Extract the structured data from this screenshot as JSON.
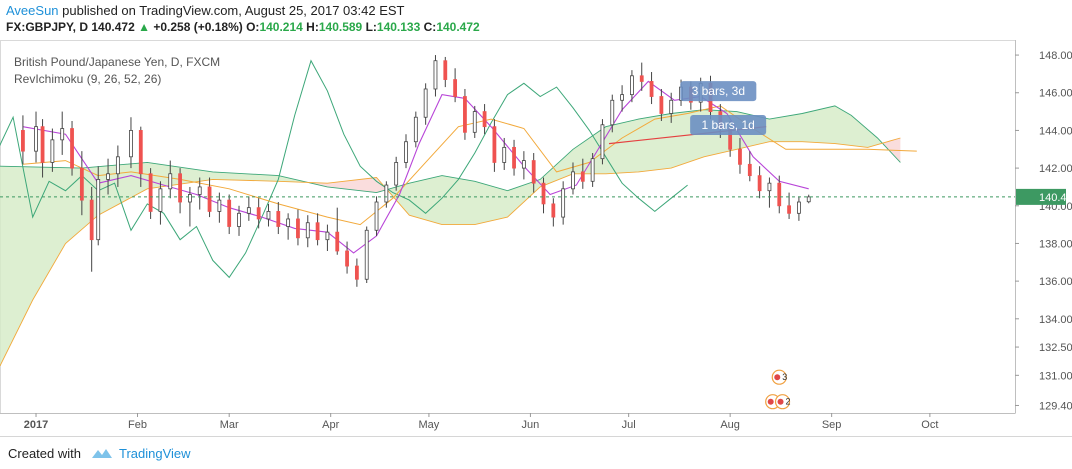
{
  "header": {
    "author": "AveeSun",
    "published": "published on TradingView.com, August 25, 2017 03:42 EST",
    "symbol": "FX:GBPJPY, D",
    "last": "140.472",
    "change": "+0.258 (+0.18%)",
    "open_label": "O:",
    "open": "140.214",
    "high_label": "H:",
    "high": "140.589",
    "low_label": "L:",
    "low": "140.133",
    "close_label": "C:",
    "close": "140.472"
  },
  "chart_title": "British Pound/Japanese Yen, D, FXCM",
  "indicator_label": "RevIchimoku (9, 26, 52, 26)",
  "footer": {
    "created": "Created with",
    "brand": "TradingView"
  },
  "colors": {
    "up": "#26a69a",
    "down": "#ef5350",
    "up_fill": "#ffffff",
    "conversion": "#b845d8",
    "base": "#f2a93b",
    "lagging": "#3da779",
    "cloud_bull": "#d4ebc6",
    "cloud_bear": "#f9d5d5",
    "last_price": "#3d9962",
    "trendline": "#e54040",
    "annotation": "#6b8fc2"
  },
  "annotations": [
    {
      "text": "3 bars, 3d"
    },
    {
      "text": "1 bars, 1d"
    }
  ],
  "chart_data": {
    "type": "candlestick",
    "title": "British Pound/Japanese Yen, D, FXCM",
    "xlabel": "",
    "ylabel": "",
    "ylim": [
      129.0,
      148.8
    ],
    "y_ticks": [
      "148.000",
      "146.000",
      "144.000",
      "142.000",
      "140.000",
      "138.000",
      "136.000",
      "134.000",
      "132.500",
      "131.000",
      "129.400"
    ],
    "y_tick_values": [
      148,
      146,
      144,
      142,
      140,
      138,
      136,
      134,
      132.5,
      131,
      129.4
    ],
    "x_ticks": [
      "2017",
      "Feb",
      "Mar",
      "Apr",
      "May",
      "Jun",
      "Jul",
      "Aug",
      "Sep",
      "Oct"
    ],
    "x_tick_days": [
      1,
      32,
      60,
      91,
      121,
      152,
      182,
      213,
      244,
      274
    ],
    "x_range_days": [
      -10,
      300
    ],
    "last_price": 140.472,
    "last_day": 237,
    "candles": [
      [
        -3,
        144.0,
        144.8,
        142.2,
        142.9
      ],
      [
        1,
        142.9,
        145.0,
        142.3,
        144.2
      ],
      [
        3,
        144.2,
        144.6,
        141.5,
        142.3
      ],
      [
        6,
        142.3,
        144.1,
        141.8,
        143.5
      ],
      [
        9,
        143.5,
        145.0,
        142.7,
        144.1
      ],
      [
        12,
        144.1,
        144.5,
        141.6,
        142.0
      ],
      [
        15,
        142.0,
        142.9,
        139.5,
        140.3
      ],
      [
        18,
        140.3,
        141.0,
        136.5,
        138.2
      ],
      [
        20,
        138.2,
        142.1,
        137.9,
        141.4
      ],
      [
        23,
        141.4,
        142.5,
        140.6,
        141.7
      ],
      [
        26,
        141.7,
        143.2,
        141.0,
        142.6
      ],
      [
        30,
        142.6,
        144.7,
        142.0,
        144.0
      ],
      [
        33,
        144.0,
        144.2,
        141.0,
        141.7
      ],
      [
        36,
        141.7,
        142.0,
        139.3,
        139.7
      ],
      [
        39,
        139.7,
        141.3,
        139.0,
        140.9
      ],
      [
        42,
        140.9,
        142.4,
        140.4,
        141.7
      ],
      [
        45,
        141.7,
        142.0,
        139.6,
        140.2
      ],
      [
        48,
        140.2,
        141.0,
        138.9,
        140.6
      ],
      [
        51,
        140.6,
        141.5,
        139.8,
        141.0
      ],
      [
        54,
        141.0,
        141.5,
        139.4,
        139.7
      ],
      [
        57,
        139.7,
        140.7,
        139.1,
        140.3
      ],
      [
        60,
        140.3,
        140.6,
        138.5,
        138.9
      ],
      [
        63,
        138.9,
        140.0,
        138.4,
        139.6
      ],
      [
        66,
        139.6,
        140.5,
        139.2,
        139.9
      ],
      [
        69,
        139.9,
        140.4,
        138.8,
        139.3
      ],
      [
        72,
        139.3,
        140.1,
        138.9,
        139.7
      ],
      [
        75,
        139.7,
        140.2,
        138.5,
        138.9
      ],
      [
        78,
        138.9,
        139.6,
        138.2,
        139.3
      ],
      [
        81,
        139.3,
        139.8,
        137.9,
        138.3
      ],
      [
        84,
        138.3,
        139.5,
        137.8,
        139.1
      ],
      [
        87,
        139.1,
        139.6,
        137.9,
        138.2
      ],
      [
        90,
        138.2,
        139.0,
        137.6,
        138.6
      ],
      [
        93,
        138.6,
        139.9,
        137.4,
        137.6
      ],
      [
        96,
        137.6,
        138.1,
        136.4,
        136.8
      ],
      [
        99,
        136.8,
        137.2,
        135.7,
        136.1
      ],
      [
        102,
        136.1,
        138.9,
        135.9,
        138.7
      ],
      [
        105,
        138.7,
        140.5,
        138.4,
        140.2
      ],
      [
        108,
        140.2,
        141.3,
        139.9,
        141.1
      ],
      [
        111,
        141.1,
        142.6,
        140.8,
        142.3
      ],
      [
        114,
        142.3,
        143.8,
        142.0,
        143.4
      ],
      [
        117,
        143.4,
        145.0,
        143.1,
        144.7
      ],
      [
        120,
        144.7,
        146.5,
        144.3,
        146.2
      ],
      [
        123,
        146.2,
        148.0,
        145.8,
        147.7
      ],
      [
        126,
        147.7,
        147.9,
        146.3,
        146.7
      ],
      [
        129,
        146.7,
        147.3,
        145.5,
        145.8
      ],
      [
        132,
        145.8,
        146.2,
        143.5,
        143.9
      ],
      [
        135,
        143.9,
        145.3,
        143.6,
        145.0
      ],
      [
        138,
        145.0,
        145.4,
        143.8,
        144.2
      ],
      [
        141,
        144.2,
        144.6,
        141.8,
        142.3
      ],
      [
        144,
        142.3,
        143.6,
        141.9,
        143.1
      ],
      [
        147,
        143.1,
        143.5,
        141.6,
        142.0
      ],
      [
        150,
        142.0,
        142.9,
        141.4,
        142.4
      ],
      [
        153,
        142.4,
        142.8,
        140.7,
        141.2
      ],
      [
        156,
        141.2,
        141.5,
        139.6,
        140.1
      ],
      [
        159,
        140.1,
        140.4,
        138.9,
        139.4
      ],
      [
        162,
        139.4,
        141.3,
        139.0,
        140.9
      ],
      [
        165,
        140.9,
        142.3,
        140.6,
        141.8
      ],
      [
        168,
        141.8,
        142.5,
        140.9,
        141.3
      ],
      [
        171,
        141.3,
        142.8,
        141.0,
        142.5
      ],
      [
        174,
        142.5,
        144.6,
        142.2,
        144.3
      ],
      [
        177,
        144.3,
        145.9,
        143.9,
        145.6
      ],
      [
        180,
        145.6,
        146.4,
        145.0,
        145.9
      ],
      [
        183,
        145.9,
        147.2,
        145.5,
        146.9
      ],
      [
        186,
        146.9,
        147.6,
        146.1,
        146.6
      ],
      [
        189,
        146.6,
        147.1,
        145.4,
        145.8
      ],
      [
        192,
        145.8,
        146.2,
        144.5,
        144.9
      ],
      [
        195,
        144.9,
        146.0,
        144.4,
        145.6
      ],
      [
        198,
        145.6,
        146.7,
        145.3,
        146.3
      ],
      [
        201,
        146.3,
        146.6,
        145.1,
        145.5
      ],
      [
        204,
        145.5,
        146.8,
        145.0,
        146.5
      ],
      [
        207,
        146.5,
        146.9,
        144.6,
        145.0
      ],
      [
        210,
        145.0,
        145.4,
        143.6,
        144.1
      ],
      [
        213,
        144.1,
        144.5,
        142.6,
        143.0
      ],
      [
        216,
        143.0,
        143.6,
        141.7,
        142.2
      ],
      [
        219,
        142.2,
        142.9,
        141.3,
        141.6
      ],
      [
        222,
        141.6,
        142.1,
        140.4,
        140.8
      ],
      [
        225,
        140.8,
        141.5,
        139.9,
        141.2
      ],
      [
        228,
        141.2,
        141.6,
        139.6,
        140.0
      ],
      [
        231,
        140.0,
        140.7,
        139.3,
        139.6
      ],
      [
        234,
        139.6,
        140.5,
        139.2,
        140.2
      ],
      [
        237,
        140.214,
        140.589,
        140.133,
        140.472
      ]
    ],
    "series": [
      {
        "role": "conversion",
        "color": "#b845d8",
        "points": [
          [
            -3,
            144.2
          ],
          [
            10,
            143.8
          ],
          [
            20,
            141.2
          ],
          [
            30,
            141.6
          ],
          [
            40,
            141.1
          ],
          [
            50,
            140.6
          ],
          [
            60,
            139.9
          ],
          [
            70,
            139.4
          ],
          [
            80,
            138.8
          ],
          [
            90,
            138.6
          ],
          [
            98,
            137.5
          ],
          [
            105,
            138.4
          ],
          [
            112,
            140.6
          ],
          [
            118,
            143.3
          ],
          [
            125,
            145.9
          ],
          [
            132,
            145.7
          ],
          [
            140,
            144.2
          ],
          [
            150,
            142.1
          ],
          [
            158,
            140.6
          ],
          [
            166,
            141.1
          ],
          [
            172,
            142.8
          ],
          [
            180,
            145.1
          ],
          [
            188,
            146.6
          ],
          [
            196,
            145.6
          ],
          [
            204,
            145.8
          ],
          [
            212,
            144.9
          ],
          [
            220,
            142.6
          ],
          [
            228,
            141.3
          ],
          [
            237,
            140.9
          ]
        ]
      },
      {
        "role": "base",
        "color": "#f2a93b",
        "points": [
          [
            -3,
            142.2
          ],
          [
            10,
            142.4
          ],
          [
            20,
            141.6
          ],
          [
            30,
            141.8
          ],
          [
            45,
            141.4
          ],
          [
            60,
            140.9
          ],
          [
            75,
            140.1
          ],
          [
            90,
            139.4
          ],
          [
            100,
            139.0
          ],
          [
            110,
            140.4
          ],
          [
            120,
            142.3
          ],
          [
            130,
            144.2
          ],
          [
            140,
            144.6
          ],
          [
            150,
            144.1
          ],
          [
            160,
            141.8
          ],
          [
            170,
            142.3
          ],
          [
            180,
            143.6
          ],
          [
            190,
            144.6
          ],
          [
            200,
            144.9
          ],
          [
            210,
            145.3
          ],
          [
            220,
            144.1
          ],
          [
            230,
            143.0
          ],
          [
            237,
            143.0
          ],
          [
            255,
            143.0
          ],
          [
            270,
            142.9
          ]
        ]
      },
      {
        "role": "lagging",
        "color": "#3da779",
        "points": [
          [
            -12,
            142.5
          ],
          [
            -6,
            144.7
          ],
          [
            0,
            139.4
          ],
          [
            5,
            141.3
          ],
          [
            10,
            140.8
          ],
          [
            15,
            141.6
          ],
          [
            20,
            140.8
          ],
          [
            25,
            141.2
          ],
          [
            30,
            138.7
          ],
          [
            35,
            140.1
          ],
          [
            40,
            139.6
          ],
          [
            45,
            138.2
          ],
          [
            50,
            138.9
          ],
          [
            55,
            137.1
          ],
          [
            60,
            136.2
          ],
          [
            65,
            137.5
          ],
          [
            70,
            139.4
          ],
          [
            75,
            141.4
          ],
          [
            80,
            144.8
          ],
          [
            85,
            147.7
          ],
          [
            90,
            146.1
          ],
          [
            95,
            143.8
          ],
          [
            100,
            142.1
          ],
          [
            105,
            141.3
          ],
          [
            110,
            140.7
          ],
          [
            115,
            140.3
          ],
          [
            120,
            139.6
          ],
          [
            125,
            140.4
          ],
          [
            130,
            141.4
          ],
          [
            135,
            142.8
          ],
          [
            140,
            144.4
          ],
          [
            145,
            145.9
          ],
          [
            150,
            146.5
          ],
          [
            155,
            145.8
          ],
          [
            160,
            146.3
          ],
          [
            165,
            145.2
          ],
          [
            170,
            144.0
          ],
          [
            175,
            142.6
          ],
          [
            180,
            141.2
          ],
          [
            185,
            140.4
          ],
          [
            190,
            139.7
          ],
          [
            195,
            140.4
          ],
          [
            200,
            141.1
          ]
        ]
      },
      {
        "role": "cloud_upper",
        "color": "#3da779",
        "points": [
          [
            -10,
            142.1
          ],
          [
            15,
            142.0
          ],
          [
            35,
            142.3
          ],
          [
            55,
            141.8
          ],
          [
            75,
            141.6
          ],
          [
            90,
            141.0
          ],
          [
            105,
            140.7
          ],
          [
            115,
            141.2
          ],
          [
            125,
            141.6
          ],
          [
            135,
            141.3
          ],
          [
            145,
            140.8
          ],
          [
            155,
            141.4
          ],
          [
            165,
            143.0
          ],
          [
            175,
            144.2
          ],
          [
            185,
            144.6
          ],
          [
            195,
            144.9
          ],
          [
            205,
            145.1
          ],
          [
            215,
            145.0
          ],
          [
            225,
            144.6
          ],
          [
            235,
            144.9
          ],
          [
            245,
            145.3
          ],
          [
            250,
            144.8
          ],
          [
            258,
            143.6
          ],
          [
            265,
            142.3
          ]
        ]
      },
      {
        "role": "cloud_lower",
        "color": "#f2a93b",
        "points": [
          [
            -10,
            131.5
          ],
          [
            0,
            135.0
          ],
          [
            10,
            138.0
          ],
          [
            20,
            139.5
          ],
          [
            35,
            140.9
          ],
          [
            55,
            141.4
          ],
          [
            75,
            141.3
          ],
          [
            90,
            141.2
          ],
          [
            105,
            141.5
          ],
          [
            115,
            139.5
          ],
          [
            125,
            139.0
          ],
          [
            135,
            139.0
          ],
          [
            145,
            139.4
          ],
          [
            155,
            141.0
          ],
          [
            165,
            141.7
          ],
          [
            175,
            141.7
          ],
          [
            185,
            141.8
          ],
          [
            195,
            142.0
          ],
          [
            205,
            142.6
          ],
          [
            215,
            143.0
          ],
          [
            225,
            143.4
          ],
          [
            235,
            143.4
          ],
          [
            245,
            143.3
          ],
          [
            255,
            143.1
          ],
          [
            265,
            143.6
          ]
        ]
      }
    ],
    "trendline": [
      [
        176,
        143.3
      ],
      [
        224,
        144.2
      ]
    ]
  }
}
